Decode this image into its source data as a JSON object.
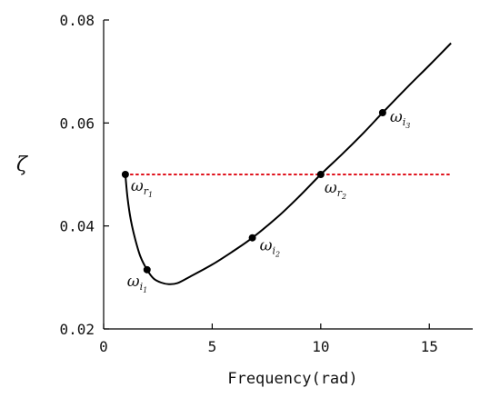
{
  "chart_data": {
    "type": "line",
    "xlabel": "Frequency(rad)",
    "ylabel": "ζ",
    "xlim": [
      0,
      17
    ],
    "ylim": [
      0.02,
      0.08
    ],
    "xticks": [
      0,
      5,
      10,
      15
    ],
    "yticks": [
      0.02,
      0.04,
      0.06,
      0.08
    ],
    "xtick_labels": [
      "0",
      "5",
      "10",
      "15"
    ],
    "ytick_labels": [
      "0.02",
      "0.04",
      "0.06",
      "0.08"
    ],
    "grid": false,
    "series": [
      {
        "style": "solid",
        "color": "#000000",
        "x": [
          1.0,
          1.1,
          1.25,
          1.45,
          1.7,
          2.0,
          2.3,
          2.65,
          3.0,
          3.4,
          4.0,
          5.0,
          6.0,
          6.85,
          8.0,
          9.0,
          10.0,
          11.0,
          12.0,
          12.85,
          14.0,
          15.0,
          16.0
        ],
        "y": [
          0.05,
          0.0455,
          0.0412,
          0.0375,
          0.034,
          0.0315,
          0.0298,
          0.029,
          0.0287,
          0.0289,
          0.0302,
          0.0325,
          0.0352,
          0.0377,
          0.0417,
          0.0457,
          0.05,
          0.054,
          0.0582,
          0.062,
          0.067,
          0.0712,
          0.0755
        ]
      },
      {
        "style": "dotted",
        "color": "#e0141e",
        "x": [
          1.0,
          16.0
        ],
        "y": [
          0.05,
          0.05
        ]
      }
    ],
    "points": [
      {
        "x": 1.0,
        "y": 0.05,
        "label": "ω",
        "sub": "r",
        "subsub": "1"
      },
      {
        "x": 2.0,
        "y": 0.0315,
        "label": "ω",
        "sub": "i",
        "subsub": "1"
      },
      {
        "x": 6.85,
        "y": 0.0377,
        "label": "ω",
        "sub": "i",
        "subsub": "2"
      },
      {
        "x": 10.0,
        "y": 0.05,
        "label": "ω",
        "sub": "r",
        "subsub": "2"
      },
      {
        "x": 12.85,
        "y": 0.062,
        "label": "ω",
        "sub": "i",
        "subsub": "3"
      }
    ]
  }
}
